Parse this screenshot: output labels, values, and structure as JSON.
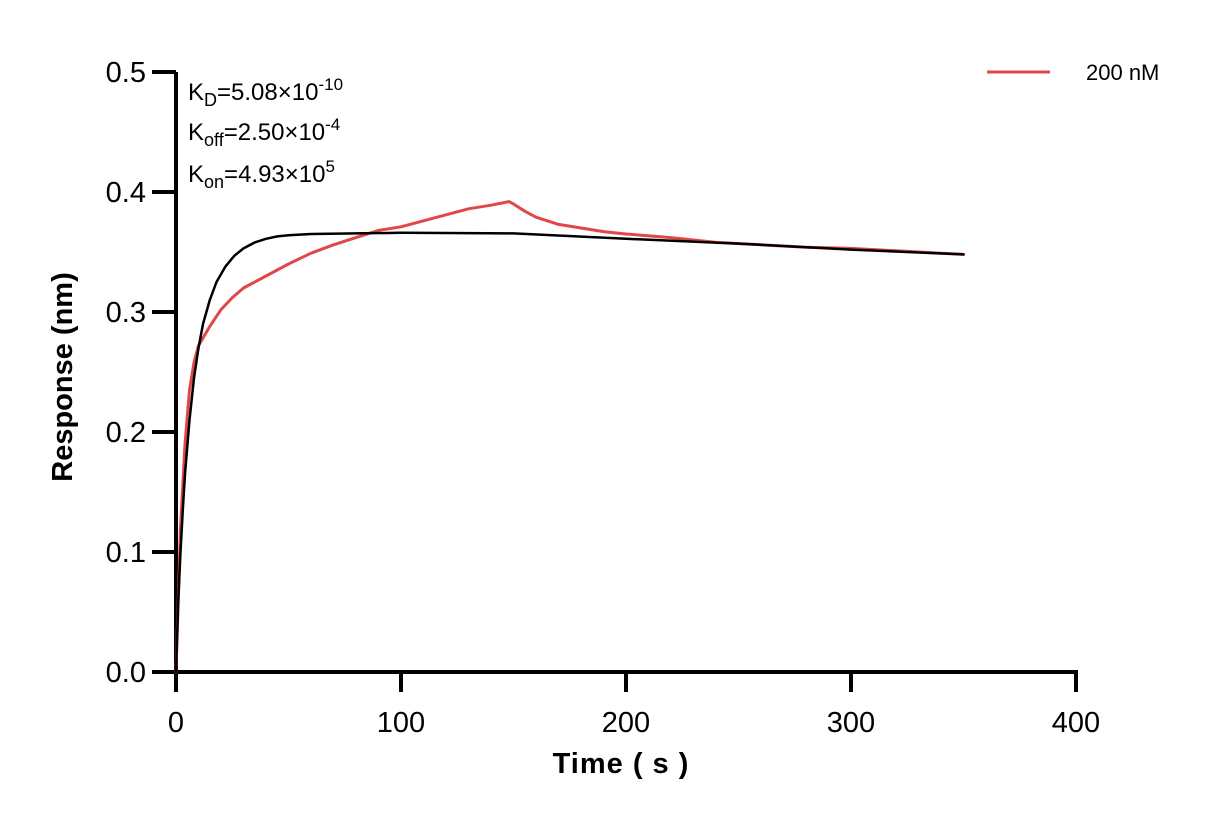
{
  "chart_data": {
    "type": "line",
    "title": "",
    "xlabel": "Time ( s )",
    "ylabel": "Response (nm)",
    "xlim": [
      0,
      400
    ],
    "ylim": [
      0,
      0.5
    ],
    "xticks": [
      0,
      100,
      200,
      300,
      400
    ],
    "xtick_labels": [
      "0",
      "100",
      "200",
      "300",
      "400"
    ],
    "yticks": [
      0,
      0.1,
      0.2,
      0.3,
      0.4,
      0.5
    ],
    "ytick_labels": [
      "0.0",
      "0.1",
      "0.2",
      "0.3",
      "0.4",
      "0.5"
    ],
    "grid": false,
    "legend_position": "top-right",
    "annotations": {
      "kd": {
        "main": "K",
        "sub": "D",
        "value": "=5.08×10",
        "exp": "-10"
      },
      "koff": {
        "main": "K",
        "sub": "off",
        "value": "=2.50×10",
        "exp": "-4"
      },
      "kon": {
        "main": "K",
        "sub": "on",
        "value": "=4.93×10",
        "exp": "5"
      }
    },
    "series": [
      {
        "name": "200 nM",
        "color": "#e04848",
        "x": [
          0,
          2,
          4,
          6,
          8,
          10,
          15,
          20,
          25,
          30,
          40,
          50,
          60,
          70,
          80,
          90,
          100,
          110,
          120,
          130,
          140,
          148,
          150,
          155,
          160,
          170,
          180,
          190,
          200,
          220,
          240,
          260,
          280,
          300,
          320,
          340,
          350
        ],
        "y": [
          0.0,
          0.12,
          0.19,
          0.235,
          0.258,
          0.272,
          0.288,
          0.302,
          0.312,
          0.32,
          0.33,
          0.34,
          0.349,
          0.356,
          0.362,
          0.368,
          0.371,
          0.376,
          0.381,
          0.386,
          0.389,
          0.392,
          0.39,
          0.384,
          0.379,
          0.373,
          0.37,
          0.367,
          0.365,
          0.362,
          0.358,
          0.356,
          0.354,
          0.353,
          0.351,
          0.349,
          0.348
        ]
      },
      {
        "name": "",
        "color": "#000000",
        "x": [
          0,
          1,
          2,
          3,
          4,
          6,
          8,
          10,
          12,
          15,
          18,
          22,
          26,
          30,
          35,
          40,
          45,
          50,
          60,
          80,
          100,
          150,
          200,
          250,
          300,
          350
        ],
        "y": [
          0.0,
          0.06,
          0.1,
          0.135,
          0.165,
          0.21,
          0.245,
          0.27,
          0.29,
          0.31,
          0.325,
          0.338,
          0.347,
          0.353,
          0.358,
          0.361,
          0.363,
          0.364,
          0.365,
          0.3655,
          0.366,
          0.3655,
          0.361,
          0.357,
          0.352,
          0.348
        ]
      }
    ]
  }
}
